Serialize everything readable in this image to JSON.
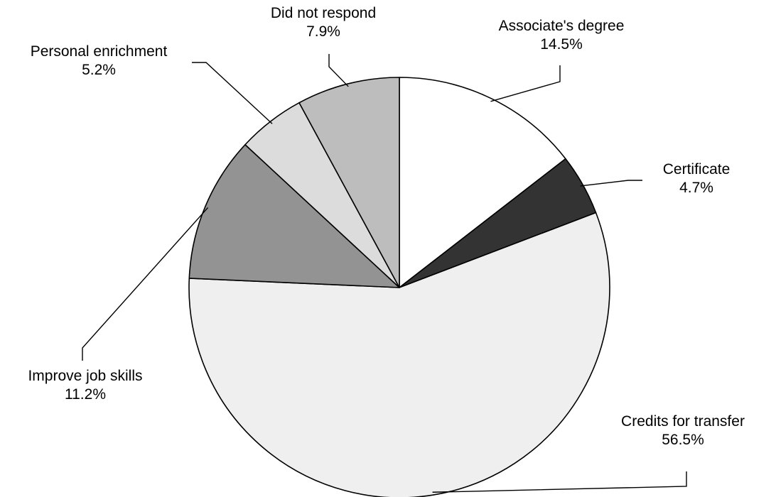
{
  "chart_data": {
    "type": "pie",
    "title": "",
    "start_angle_deg": 0,
    "direction": "clockwise",
    "slices": [
      {
        "label": "Associate's degree",
        "value": 14.5,
        "value_label": "14.5%",
        "color": "#ffffff"
      },
      {
        "label": "Certificate",
        "value": 4.7,
        "value_label": "4.7%",
        "color": "#333333"
      },
      {
        "label": "Credits for transfer",
        "value": 56.5,
        "value_label": "56.5%",
        "color": "#efefef"
      },
      {
        "label": "Improve job skills",
        "value": 11.2,
        "value_label": "11.2%",
        "color": "#939393"
      },
      {
        "label": "Personal enrichment",
        "value": 5.2,
        "value_label": "5.2%",
        "color": "#dcdcdc"
      },
      {
        "label": "Did not respond",
        "value": 7.9,
        "value_label": "7.9%",
        "color": "#bdbdbd"
      }
    ]
  }
}
